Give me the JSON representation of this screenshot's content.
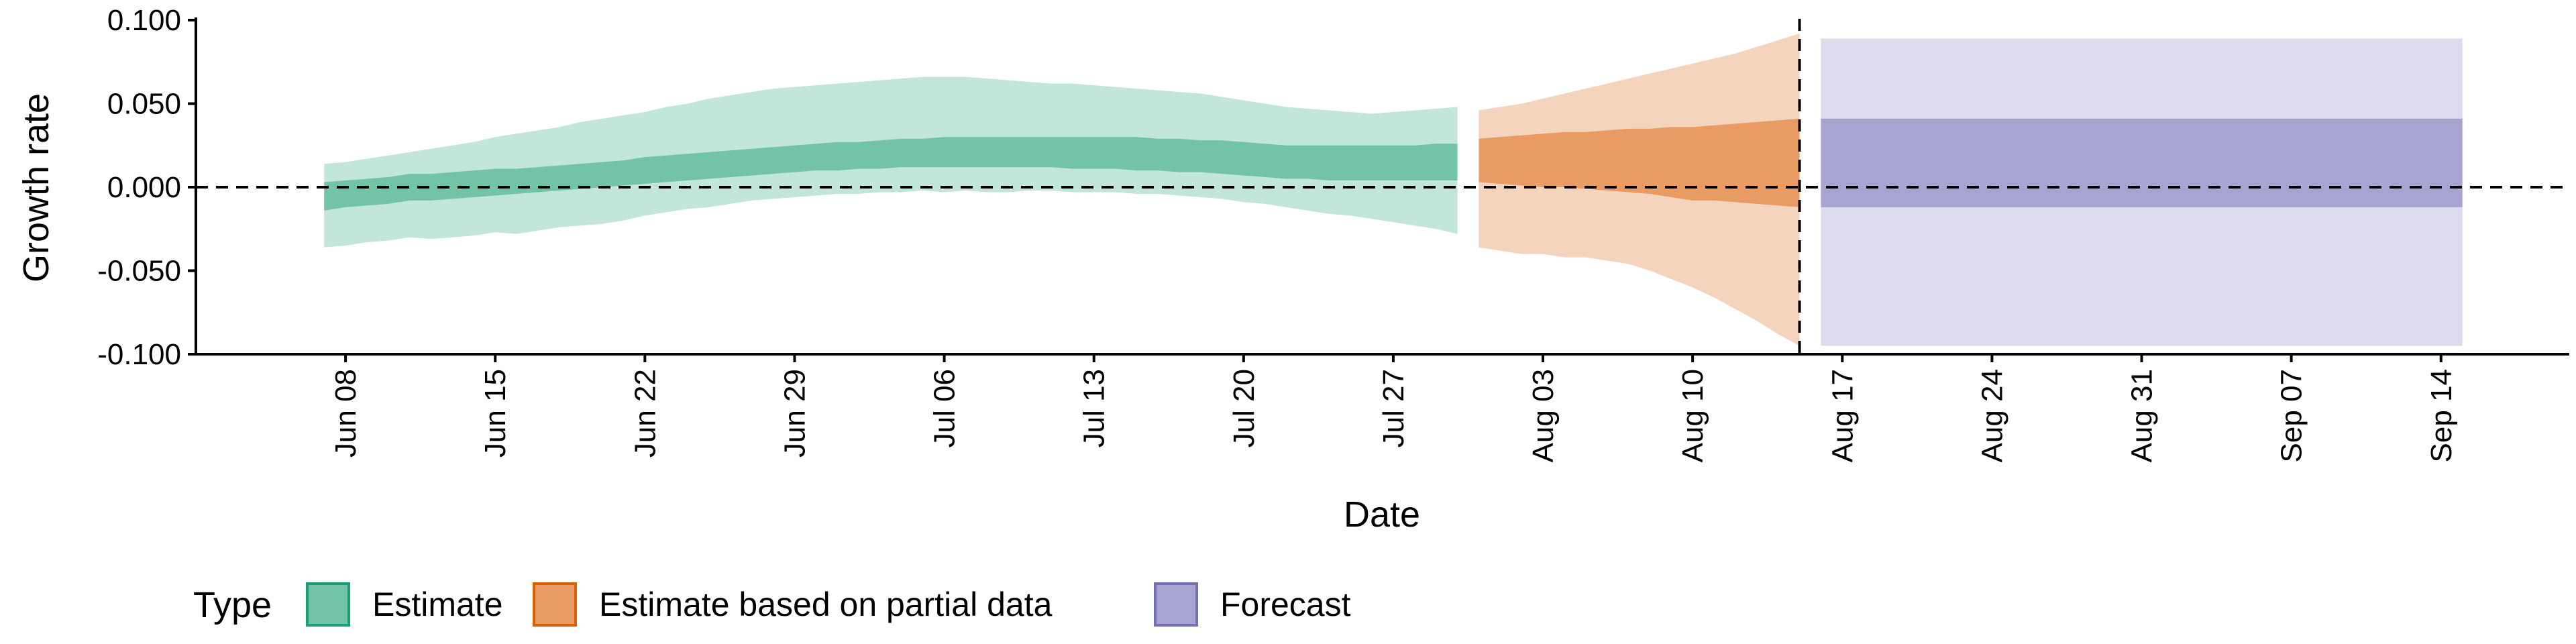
{
  "chart_data": {
    "type": "area",
    "xlabel": "Date",
    "ylabel": "Growth rate",
    "x_axis_type": "date",
    "x_range": [
      "2020-06-01",
      "2020-09-20"
    ],
    "ylim": [
      -0.1,
      0.1
    ],
    "y_ticks": [
      -0.1,
      -0.05,
      0.0,
      0.05,
      0.1
    ],
    "y_tick_labels": [
      "-0.100",
      "-0.050",
      "0.000",
      "0.050",
      "0.100"
    ],
    "x_ticks": [
      "2020-06-08",
      "2020-06-15",
      "2020-06-22",
      "2020-06-29",
      "2020-07-06",
      "2020-07-13",
      "2020-07-20",
      "2020-07-27",
      "2020-08-03",
      "2020-08-10",
      "2020-08-17",
      "2020-08-24",
      "2020-08-31",
      "2020-09-07",
      "2020-09-14"
    ],
    "x_tick_labels": [
      "Jun 08",
      "Jun 15",
      "Jun 22",
      "Jun 29",
      "Jul 06",
      "Jul 13",
      "Jul 20",
      "Jul 27",
      "Aug 03",
      "Aug 10",
      "Aug 17",
      "Aug 24",
      "Aug 31",
      "Sep 07",
      "Sep 14"
    ],
    "reference_lines": {
      "horizontal_y": 0.0,
      "vertical_x": "2020-08-15"
    },
    "grid": false,
    "legend": {
      "title": "Type",
      "position": "bottom",
      "entries": [
        {
          "label": "Estimate",
          "fill": "#73c3a7",
          "border": "#1b9e77"
        },
        {
          "label": "Estimate based on partial data",
          "fill": "#e89b63",
          "border": "#d95f02"
        },
        {
          "label": "Forecast",
          "fill": "#a8a4d2",
          "border": "#7570b3"
        }
      ]
    },
    "series": [
      {
        "name": "Estimate",
        "colors": {
          "outer": "#c3e6da",
          "inner": "#73c3a7"
        },
        "x": [
          "2020-06-07",
          "2020-06-08",
          "2020-06-09",
          "2020-06-10",
          "2020-06-11",
          "2020-06-12",
          "2020-06-13",
          "2020-06-14",
          "2020-06-15",
          "2020-06-16",
          "2020-06-17",
          "2020-06-18",
          "2020-06-19",
          "2020-06-20",
          "2020-06-21",
          "2020-06-22",
          "2020-06-23",
          "2020-06-24",
          "2020-06-25",
          "2020-06-26",
          "2020-06-27",
          "2020-06-28",
          "2020-06-29",
          "2020-06-30",
          "2020-07-01",
          "2020-07-02",
          "2020-07-03",
          "2020-07-04",
          "2020-07-05",
          "2020-07-06",
          "2020-07-07",
          "2020-07-08",
          "2020-07-09",
          "2020-07-10",
          "2020-07-11",
          "2020-07-12",
          "2020-07-13",
          "2020-07-14",
          "2020-07-15",
          "2020-07-16",
          "2020-07-17",
          "2020-07-18",
          "2020-07-19",
          "2020-07-20",
          "2020-07-21",
          "2020-07-22",
          "2020-07-23",
          "2020-07-24",
          "2020-07-25",
          "2020-07-26",
          "2020-07-27",
          "2020-07-28",
          "2020-07-29",
          "2020-07-30"
        ],
        "outer_lower": [
          -0.036,
          -0.035,
          -0.033,
          -0.032,
          -0.03,
          -0.031,
          -0.03,
          -0.029,
          -0.027,
          -0.028,
          -0.026,
          -0.024,
          -0.023,
          -0.022,
          -0.02,
          -0.017,
          -0.015,
          -0.013,
          -0.012,
          -0.01,
          -0.008,
          -0.007,
          -0.006,
          -0.005,
          -0.004,
          -0.004,
          -0.003,
          -0.003,
          -0.002,
          -0.003,
          -0.002,
          -0.003,
          -0.003,
          -0.002,
          -0.002,
          -0.003,
          -0.003,
          -0.003,
          -0.004,
          -0.004,
          -0.005,
          -0.006,
          -0.007,
          -0.009,
          -0.01,
          -0.012,
          -0.014,
          -0.016,
          -0.017,
          -0.019,
          -0.021,
          -0.023,
          -0.025,
          -0.028
        ],
        "inner_lower": [
          -0.014,
          -0.012,
          -0.011,
          -0.01,
          -0.008,
          -0.008,
          -0.007,
          -0.006,
          -0.005,
          -0.004,
          -0.003,
          -0.002,
          -0.001,
          0.0,
          0.001,
          0.002,
          0.003,
          0.004,
          0.005,
          0.006,
          0.007,
          0.008,
          0.009,
          0.01,
          0.01,
          0.011,
          0.011,
          0.012,
          0.012,
          0.012,
          0.012,
          0.012,
          0.012,
          0.012,
          0.012,
          0.011,
          0.011,
          0.011,
          0.01,
          0.01,
          0.009,
          0.009,
          0.008,
          0.007,
          0.006,
          0.005,
          0.005,
          0.004,
          0.004,
          0.004,
          0.004,
          0.004,
          0.004,
          0.004
        ],
        "inner_upper": [
          0.003,
          0.004,
          0.005,
          0.006,
          0.008,
          0.008,
          0.009,
          0.01,
          0.011,
          0.011,
          0.012,
          0.013,
          0.014,
          0.015,
          0.016,
          0.018,
          0.019,
          0.02,
          0.021,
          0.022,
          0.023,
          0.024,
          0.025,
          0.026,
          0.027,
          0.027,
          0.028,
          0.029,
          0.029,
          0.03,
          0.03,
          0.03,
          0.03,
          0.03,
          0.03,
          0.03,
          0.03,
          0.03,
          0.03,
          0.029,
          0.029,
          0.028,
          0.028,
          0.027,
          0.026,
          0.025,
          0.025,
          0.025,
          0.025,
          0.025,
          0.025,
          0.025,
          0.026,
          0.026
        ],
        "outer_upper": [
          0.014,
          0.015,
          0.017,
          0.019,
          0.021,
          0.023,
          0.025,
          0.027,
          0.03,
          0.032,
          0.034,
          0.036,
          0.039,
          0.041,
          0.043,
          0.045,
          0.048,
          0.05,
          0.053,
          0.055,
          0.057,
          0.059,
          0.06,
          0.061,
          0.062,
          0.063,
          0.064,
          0.065,
          0.066,
          0.066,
          0.066,
          0.065,
          0.064,
          0.063,
          0.062,
          0.062,
          0.061,
          0.06,
          0.059,
          0.058,
          0.057,
          0.056,
          0.054,
          0.052,
          0.05,
          0.048,
          0.047,
          0.046,
          0.045,
          0.044,
          0.045,
          0.046,
          0.047,
          0.048
        ]
      },
      {
        "name": "Estimate based on partial data",
        "colors": {
          "outer": "#f4d4bd",
          "inner": "#e89b63"
        },
        "x": [
          "2020-07-31",
          "2020-08-01",
          "2020-08-02",
          "2020-08-03",
          "2020-08-04",
          "2020-08-05",
          "2020-08-06",
          "2020-08-07",
          "2020-08-08",
          "2020-08-09",
          "2020-08-10",
          "2020-08-11",
          "2020-08-12",
          "2020-08-13",
          "2020-08-14",
          "2020-08-15"
        ],
        "outer_lower": [
          -0.036,
          -0.038,
          -0.04,
          -0.04,
          -0.042,
          -0.042,
          -0.044,
          -0.046,
          -0.05,
          -0.055,
          -0.06,
          -0.066,
          -0.073,
          -0.08,
          -0.088,
          -0.095
        ],
        "inner_lower": [
          0.003,
          0.002,
          0.001,
          0.0,
          0.0,
          -0.001,
          -0.002,
          -0.003,
          -0.004,
          -0.006,
          -0.008,
          -0.008,
          -0.009,
          -0.01,
          -0.011,
          -0.012
        ],
        "inner_upper": [
          0.029,
          0.03,
          0.031,
          0.032,
          0.033,
          0.033,
          0.034,
          0.035,
          0.035,
          0.036,
          0.036,
          0.037,
          0.038,
          0.039,
          0.04,
          0.041
        ],
        "outer_upper": [
          0.046,
          0.048,
          0.05,
          0.053,
          0.056,
          0.059,
          0.062,
          0.065,
          0.068,
          0.071,
          0.074,
          0.077,
          0.08,
          0.084,
          0.088,
          0.092
        ]
      },
      {
        "name": "Forecast",
        "colors": {
          "outer": "#dcdbec",
          "inner": "#a8a4d2"
        },
        "x": [
          "2020-08-16",
          "2020-09-15"
        ],
        "outer_lower": [
          -0.095,
          -0.095
        ],
        "inner_lower": [
          -0.012,
          -0.012
        ],
        "inner_upper": [
          0.041,
          0.041
        ],
        "outer_upper": [
          0.089,
          0.089
        ]
      }
    ]
  }
}
